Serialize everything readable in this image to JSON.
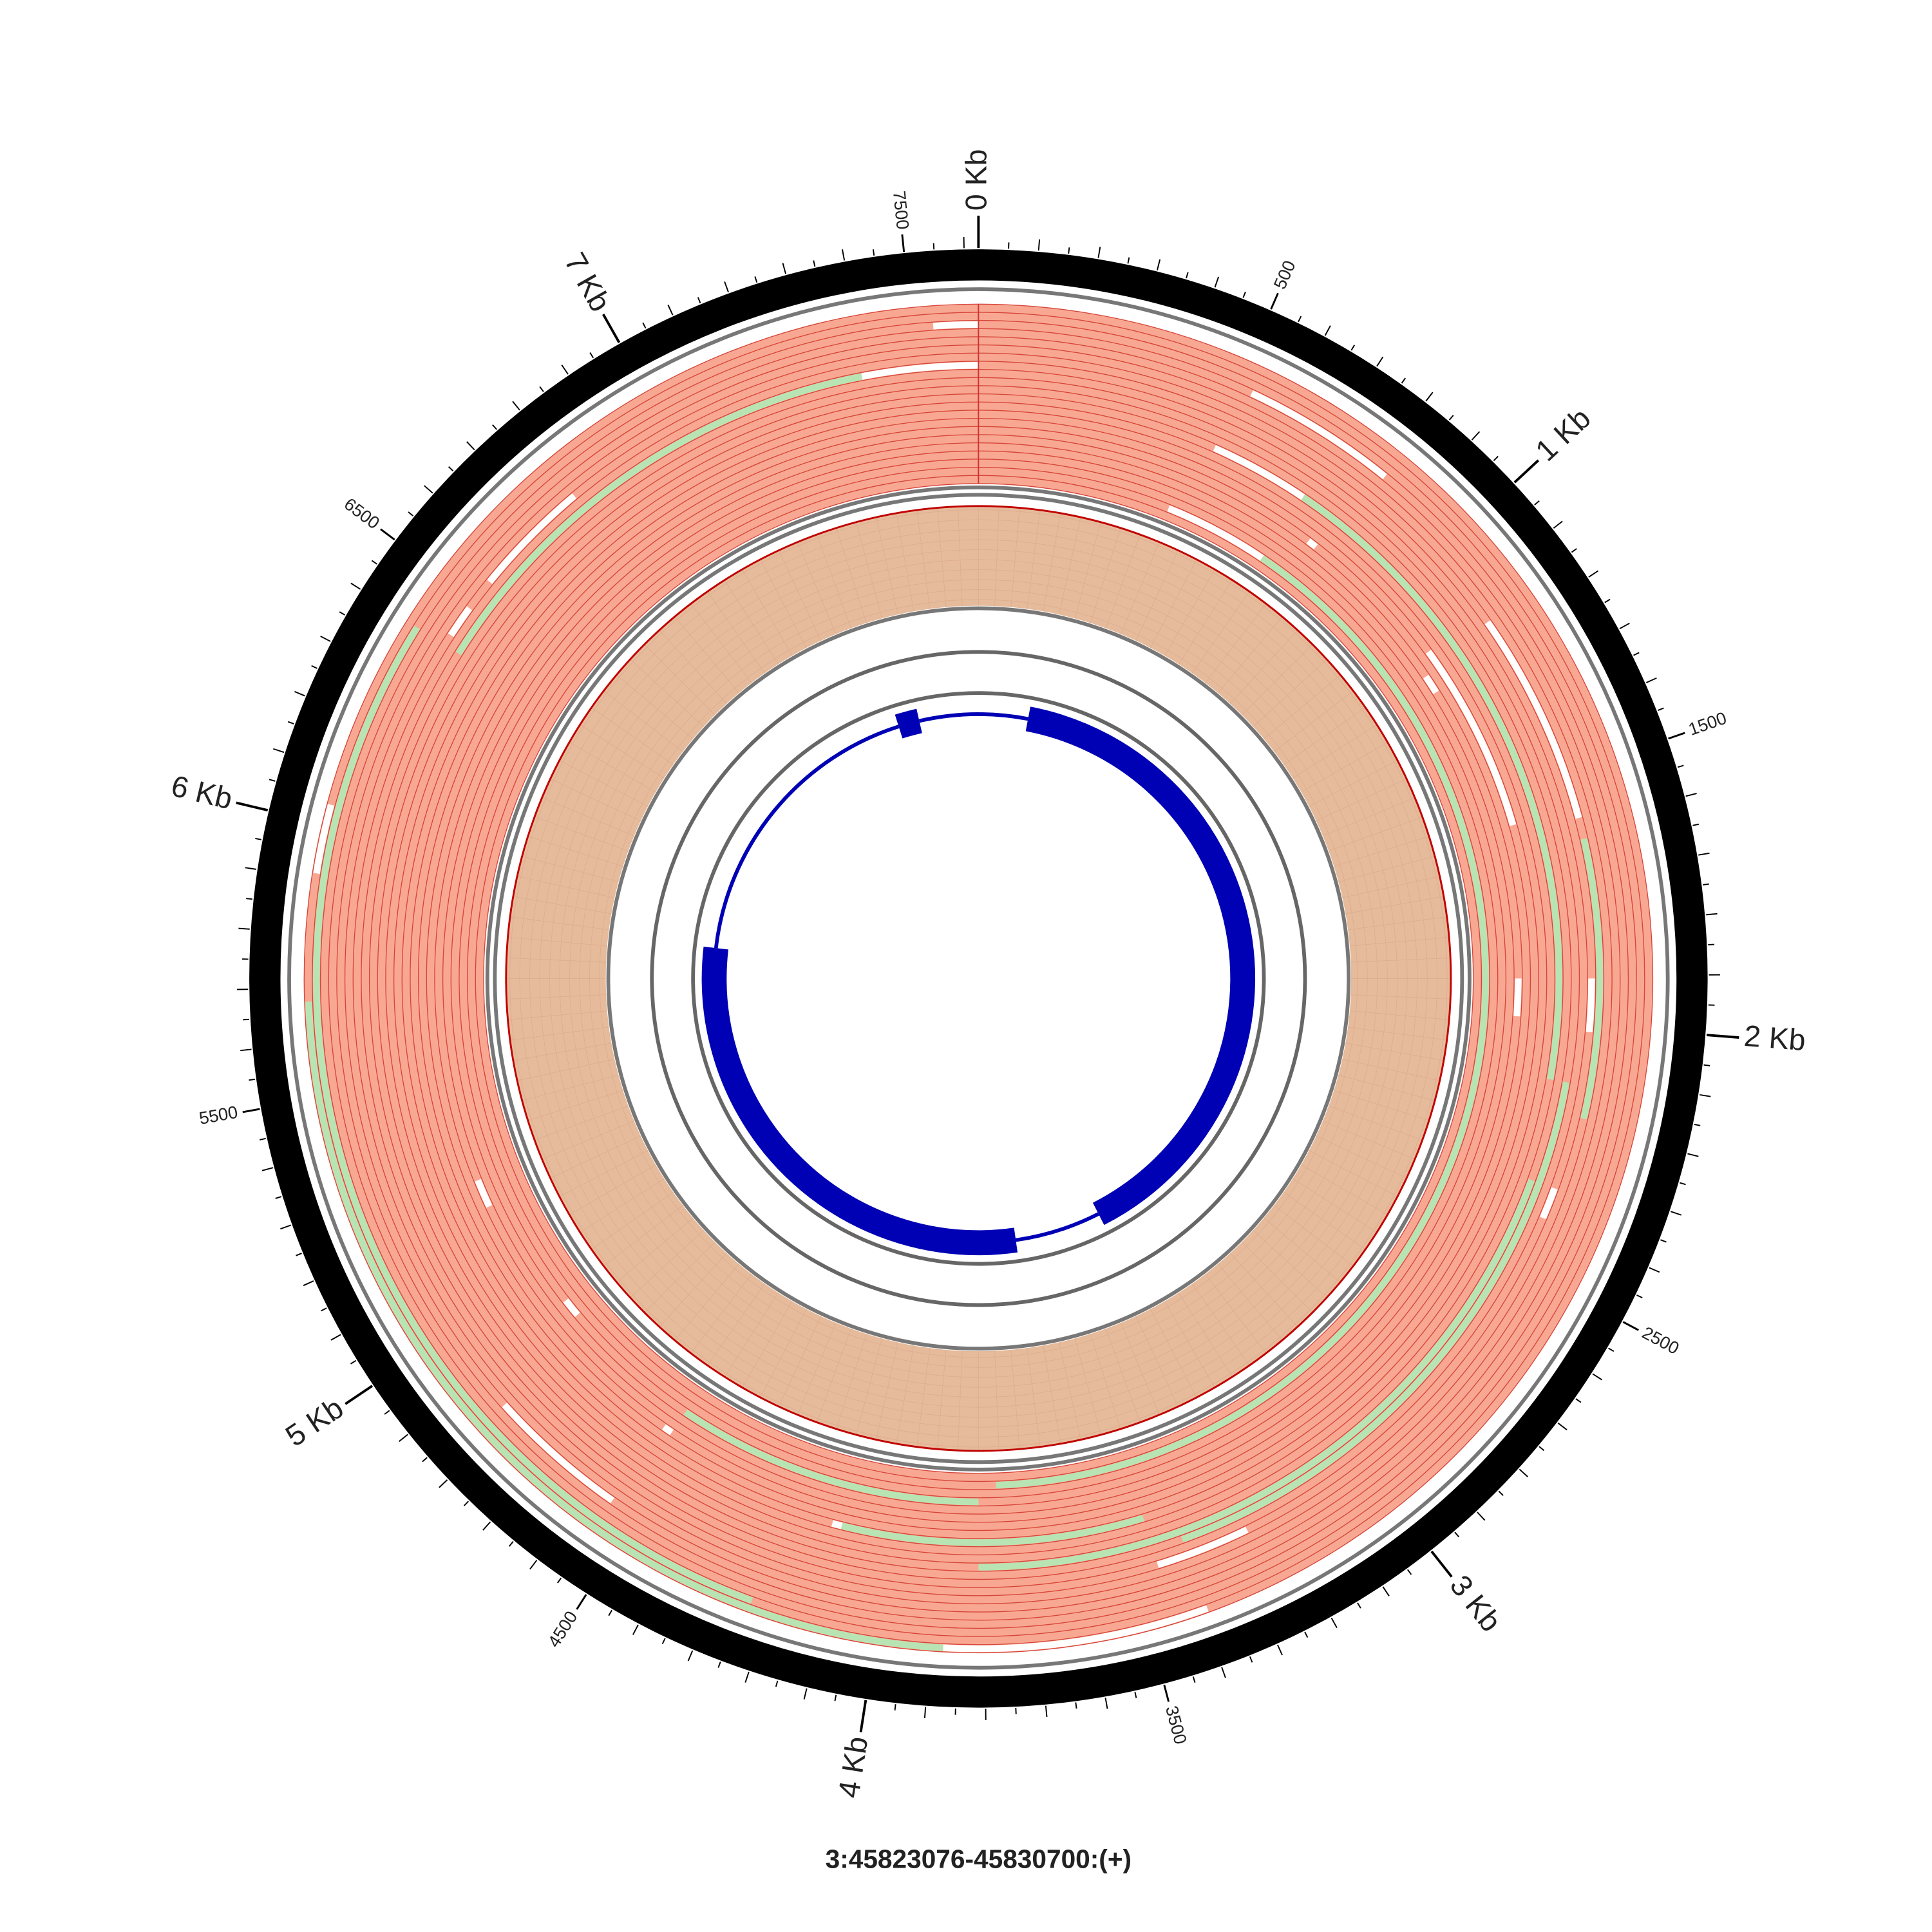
{
  "chart_data": {
    "type": "circular-genome",
    "title": "3:45823076-45830700:(+)",
    "xlim": [
      0,
      7624
    ],
    "minor_tick_every": 50,
    "xticks": [
      {
        "value": 0,
        "label": "0 Kb"
      },
      500,
      {
        "value": 1000,
        "label": "1 Kb"
      },
      1500,
      {
        "value": 2000,
        "label": "2 Kb"
      },
      2500,
      {
        "value": 3000,
        "label": "3 Kb"
      },
      3500,
      {
        "value": 4000,
        "label": "4 Kb"
      },
      4500,
      {
        "value": 5000,
        "label": "5 Kb"
      },
      5500,
      {
        "value": 6000,
        "label": "6 Kb"
      },
      6500,
      {
        "value": 7000,
        "label": "7 Kb"
      },
      7500
    ],
    "read_color": "#f8a892",
    "lanes": [
      [
        {
          "start": 3389,
          "end": 3876,
          "color": "#ffffff"
        },
        {
          "start": 3876,
          "end": 5676,
          "color": "#b8e4b4"
        },
        {
          "start": 5909,
          "end": 6036,
          "color": "#ffffff"
        }
      ],
      [
        {
          "start": 4236,
          "end": 6396,
          "color": "#b8e4b4"
        }
      ],
      [
        {
          "start": 7540,
          "end": 7624,
          "color": "#ffffff"
        }
      ],
      [
        {
          "start": 530,
          "end": 826,
          "color": "#ffffff"
        }
      ],
      [
        {
          "start": 4554,
          "end": 4829,
          "color": "#ffffff"
        }
      ],
      [
        {
          "start": 6418,
          "end": 6481,
          "color": "#ffffff"
        },
        {
          "start": 6545,
          "end": 6778,
          "color": "#ffffff"
        }
      ],
      [
        {
          "start": 1165,
          "end": 1589,
          "color": "#ffffff"
        },
        {
          "start": 1631,
          "end": 2182,
          "color": "#b8e4b4"
        }
      ],
      [
        {
          "start": 7392,
          "end": 7624,
          "color": "#ffffff"
        },
        {
          "start": 6396,
          "end": 7392,
          "color": "#b8e4b4"
        },
        {
          "start": 1906,
          "end": 2012,
          "color": "#ffffff"
        },
        {
          "start": 2330,
          "end": 2393,
          "color": "#ffffff"
        },
        {
          "start": 3262,
          "end": 3452,
          "color": "#ffffff"
        }
      ],
      [],
      [
        {
          "start": 2118,
          "end": 3389,
          "color": "#b8e4b4"
        }
      ],
      [
        {
          "start": 2330,
          "end": 3812,
          "color": "#b8e4b4"
        }
      ],
      [
        {
          "start": 508,
          "end": 720,
          "color": "#ffffff"
        },
        {
          "start": 720,
          "end": 2118,
          "color": "#b8e4b4"
        }
      ],
      [],
      [
        {
          "start": 3452,
          "end": 4109,
          "color": "#b8e4b4"
        },
        {
          "start": 4109,
          "end": 4130,
          "color": "#ffffff"
        }
      ],
      [
        {
          "start": 1144,
          "end": 1567,
          "color": "#ffffff"
        }
      ],
      [
        {
          "start": 784,
          "end": 805,
          "color": "#ffffff"
        },
        {
          "start": 4533,
          "end": 4554,
          "color": "#ffffff"
        }
      ],
      [
        {
          "start": 1186,
          "end": 1228,
          "color": "#ffffff"
        },
        {
          "start": 1906,
          "end": 1991,
          "color": "#ffffff"
        },
        {
          "start": 5189,
          "end": 5253,
          "color": "#ffffff"
        }
      ],
      [],
      [
        {
          "start": 3812,
          "end": 4533,
          "color": "#b8e4b4"
        },
        {
          "start": 4871,
          "end": 4914,
          "color": "#ffffff"
        }
      ],
      [],
      [
        {
          "start": 466,
          "end": 720,
          "color": "#ffffff"
        },
        {
          "start": 720,
          "end": 3770,
          "color": "#b8e4b4"
        }
      ],
      []
    ],
    "gene": {
      "color": "#0000b4",
      "exons": [
        {
          "start": 229,
          "end": 3240
        },
        {
          "start": 3640,
          "end": 5858
        },
        {
          "start": 7252,
          "end": 7350
        }
      ]
    }
  }
}
